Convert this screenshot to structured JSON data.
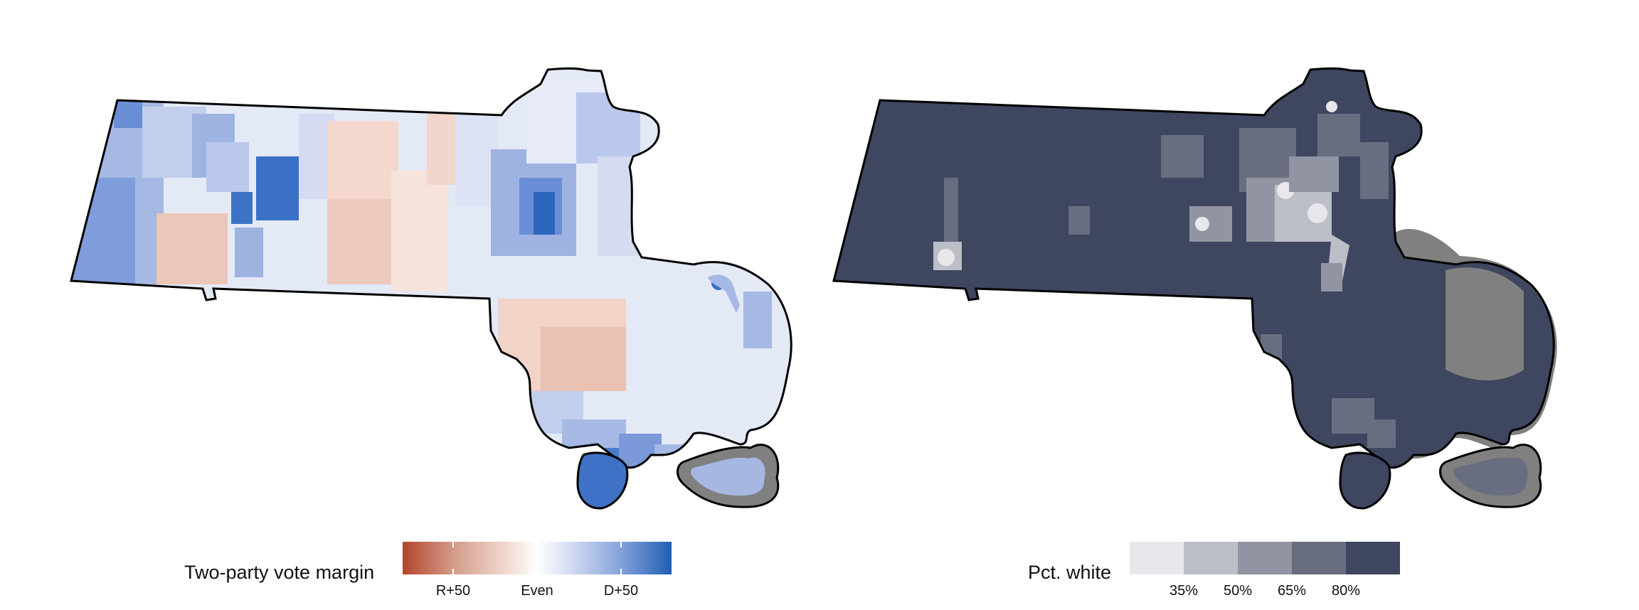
{
  "left_map": {
    "legend": {
      "title": "Two-party vote margin",
      "ticks": [
        {
          "label": "R+50",
          "value": -50
        },
        {
          "label": "Even",
          "value": 0
        },
        {
          "label": "D+50",
          "value": 50
        }
      ],
      "range": [
        -80,
        80
      ],
      "colors": {
        "low": "#b2452c",
        "mid": "#ffffff",
        "high": "#1f5fb2"
      }
    },
    "colors": {
      "background_outline": "#000000",
      "masked_area": "#808080"
    }
  },
  "right_map": {
    "legend": {
      "title": "Pct. white",
      "bins": [
        {
          "upper_label": "35%",
          "color": "#e8e8ec"
        },
        {
          "upper_label": "50%",
          "color": "#bdbfc8"
        },
        {
          "upper_label": "65%",
          "color": "#9195a3"
        },
        {
          "upper_label": "80%",
          "color": "#686e80"
        },
        {
          "upper_label": "",
          "color": "#3e4660"
        }
      ]
    },
    "colors": {
      "fill_dominant": "#3e4660",
      "masked_area": "#808080",
      "outline": "#000000"
    }
  }
}
